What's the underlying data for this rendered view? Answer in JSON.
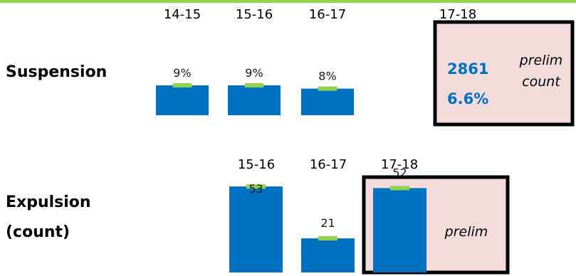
{
  "colors": {
    "bar": "#0070c0",
    "accent": "#92d050",
    "highlight_fill": "#f2dcdb",
    "highlight_border": "#000000"
  },
  "chart_data": [
    {
      "type": "bar",
      "row_label": "Suspension",
      "categories": [
        "14-15",
        "15-16",
        "16-17",
        "17-18"
      ],
      "values": [
        9,
        9,
        8,
        null
      ],
      "value_labels": [
        "9%",
        "9%",
        "8%",
        ""
      ],
      "unit": "%",
      "highlight": {
        "category": "17-18",
        "lines": [
          "2861",
          "6.6%"
        ],
        "note_lines": [
          "prelim",
          "count"
        ]
      }
    },
    {
      "type": "bar",
      "row_label_lines": [
        "Expulsion",
        "(count)"
      ],
      "categories": [
        "15-16",
        "16-17",
        "17-18"
      ],
      "values": [
        53,
        21,
        52
      ],
      "value_labels": [
        "53",
        "21",
        "52"
      ],
      "highlight": {
        "category": "17-18",
        "note_lines": [
          "prelim"
        ]
      }
    }
  ]
}
